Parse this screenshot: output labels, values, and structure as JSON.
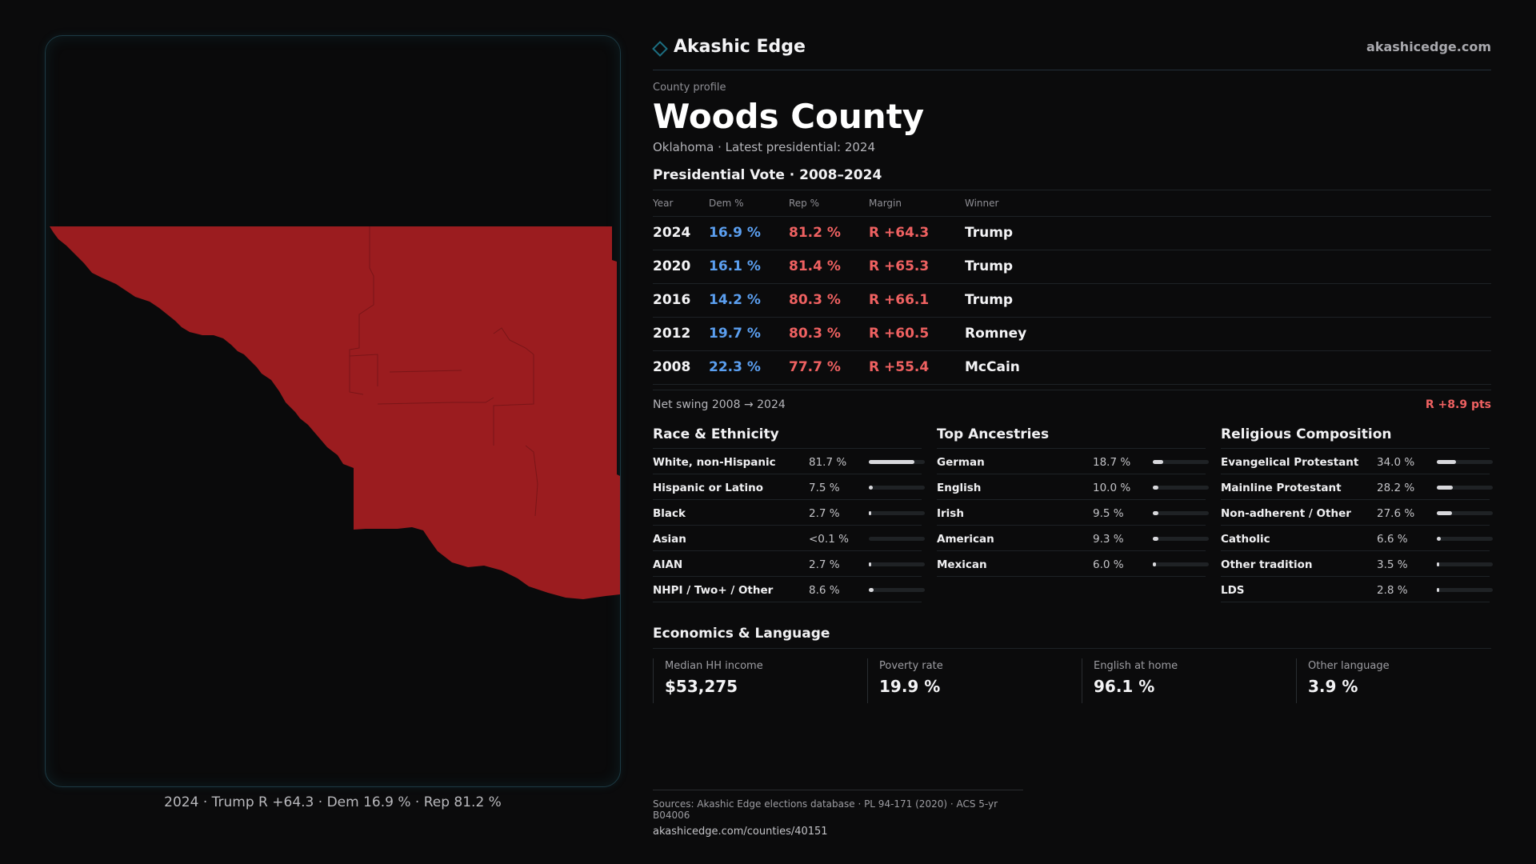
{
  "brand": {
    "name": "Akashic Edge",
    "site": "akashicedge.com"
  },
  "profile": {
    "eyebrow": "County profile",
    "title": "Woods County",
    "subtitle": "Oklahoma · Latest presidential: 2024"
  },
  "map": {
    "caption": "2024 · Trump R +64.3 · Dem 16.9 % · Rep 81.2 %",
    "fill_color": "#9b1c1f"
  },
  "vote": {
    "title": "Presidential Vote · 2008–2024",
    "headers": {
      "year": "Year",
      "dem": "Dem %",
      "rep": "Rep %",
      "margin": "Margin",
      "winner": "Winner"
    },
    "rows": [
      {
        "year": "2024",
        "dem": "16.9 %",
        "rep": "81.2 %",
        "margin": "R +64.3",
        "winner": "Trump"
      },
      {
        "year": "2020",
        "dem": "16.1 %",
        "rep": "81.4 %",
        "margin": "R +65.3",
        "winner": "Trump"
      },
      {
        "year": "2016",
        "dem": "14.2 %",
        "rep": "80.3 %",
        "margin": "R +66.1",
        "winner": "Trump"
      },
      {
        "year": "2012",
        "dem": "19.7 %",
        "rep": "80.3 %",
        "margin": "R +60.5",
        "winner": "Romney"
      },
      {
        "year": "2008",
        "dem": "22.3 %",
        "rep": "77.7 %",
        "margin": "R +55.4",
        "winner": "McCain"
      }
    ],
    "swing_label": "Net swing 2008 → 2024",
    "swing_value": "R +8.9 pts"
  },
  "race": {
    "title": "Race & Ethnicity",
    "rows": [
      {
        "label": "White, non-Hispanic",
        "value": "81.7 %",
        "fraction": 0.817
      },
      {
        "label": "Hispanic or Latino",
        "value": "7.5 %",
        "fraction": 0.075
      },
      {
        "label": "Black",
        "value": "2.7 %",
        "fraction": 0.027
      },
      {
        "label": "Asian",
        "value": "<0.1 %",
        "fraction": 0.0
      },
      {
        "label": "AIAN",
        "value": "2.7 %",
        "fraction": 0.027
      },
      {
        "label": "NHPI / Two+ / Other",
        "value": "8.6 %",
        "fraction": 0.086
      }
    ]
  },
  "ancestry": {
    "title": "Top Ancestries",
    "rows": [
      {
        "label": "German",
        "value": "18.7 %",
        "fraction": 0.187
      },
      {
        "label": "English",
        "value": "10.0 %",
        "fraction": 0.1
      },
      {
        "label": "Irish",
        "value": "9.5 %",
        "fraction": 0.095
      },
      {
        "label": "American",
        "value": "9.3 %",
        "fraction": 0.093
      },
      {
        "label": "Mexican",
        "value": "6.0 %",
        "fraction": 0.06
      }
    ]
  },
  "religion": {
    "title": "Religious Composition",
    "rows": [
      {
        "label": "Evangelical Protestant",
        "value": "34.0 %",
        "fraction": 0.34
      },
      {
        "label": "Mainline Protestant",
        "value": "28.2 %",
        "fraction": 0.282
      },
      {
        "label": "Non-adherent / Other",
        "value": "27.6 %",
        "fraction": 0.276
      },
      {
        "label": "Catholic",
        "value": "6.6 %",
        "fraction": 0.066
      },
      {
        "label": "Other tradition",
        "value": "3.5 %",
        "fraction": 0.035
      },
      {
        "label": "LDS",
        "value": "2.8 %",
        "fraction": 0.028
      }
    ]
  },
  "economics": {
    "title": "Economics & Language",
    "stats": [
      {
        "label": "Median HH income",
        "value": "$53,275"
      },
      {
        "label": "Poverty rate",
        "value": "19.9 %"
      },
      {
        "label": "English at home",
        "value": "96.1 %"
      },
      {
        "label": "Other language",
        "value": "3.9 %"
      }
    ]
  },
  "sources": {
    "line1": "Sources: Akashic Edge elections database · PL 94-171 (2020) · ACS 5-yr B04006",
    "line2": "akashicedge.com/counties/40151"
  }
}
